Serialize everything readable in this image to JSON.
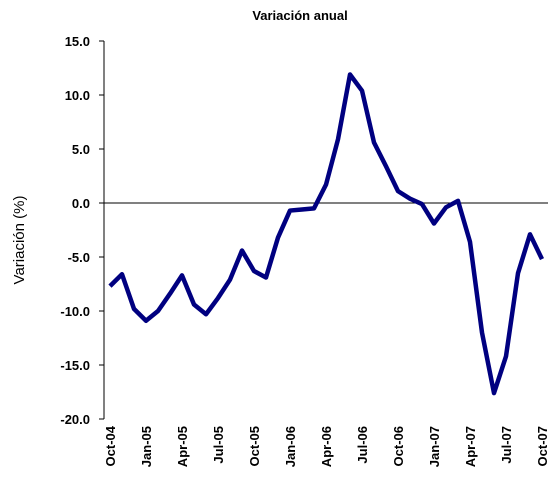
{
  "chart_data": {
    "type": "line",
    "title": "Variación anual",
    "y_label": "Variación (%)",
    "categories": [
      "Oct-04",
      null,
      null,
      "Jan-05",
      null,
      null,
      "Apr-05",
      null,
      null,
      "Jul-05",
      null,
      null,
      "Oct-05",
      null,
      null,
      "Jan-06",
      null,
      null,
      "Apr-06",
      null,
      null,
      "Jul-06",
      null,
      null,
      "Oct-06",
      null,
      null,
      "Jan-07",
      null,
      null,
      "Apr-07",
      null,
      null,
      "Jul-07",
      null,
      null,
      "Oct-07"
    ],
    "values": [
      -7.7,
      -6.6,
      -9.8,
      -10.9,
      -10.0,
      -8.4,
      -6.7,
      -9.4,
      -10.3,
      -8.8,
      -7.1,
      -4.4,
      -6.3,
      -6.9,
      -3.2,
      -0.7,
      -0.6,
      -0.5,
      1.7,
      5.9,
      11.9,
      10.4,
      5.6,
      3.4,
      1.1,
      0.4,
      -0.1,
      -1.9,
      -0.4,
      0.2,
      -3.6,
      -12.0,
      -17.6,
      -14.2,
      -6.5,
      -2.9,
      -5.2
    ],
    "color": "#000080",
    "ylim": [
      -20,
      15
    ],
    "yticks": [
      {
        "value": -20,
        "label": "-20.0"
      },
      {
        "value": -15,
        "label": "-15.0"
      },
      {
        "value": -10,
        "label": "-10.0"
      },
      {
        "value": -5,
        "label": "-5.0"
      },
      {
        "value": 0,
        "label": "0.0"
      },
      {
        "value": 5,
        "label": "5.0"
      },
      {
        "value": 10,
        "label": "10.0"
      },
      {
        "value": 15,
        "label": "15.0"
      }
    ]
  }
}
